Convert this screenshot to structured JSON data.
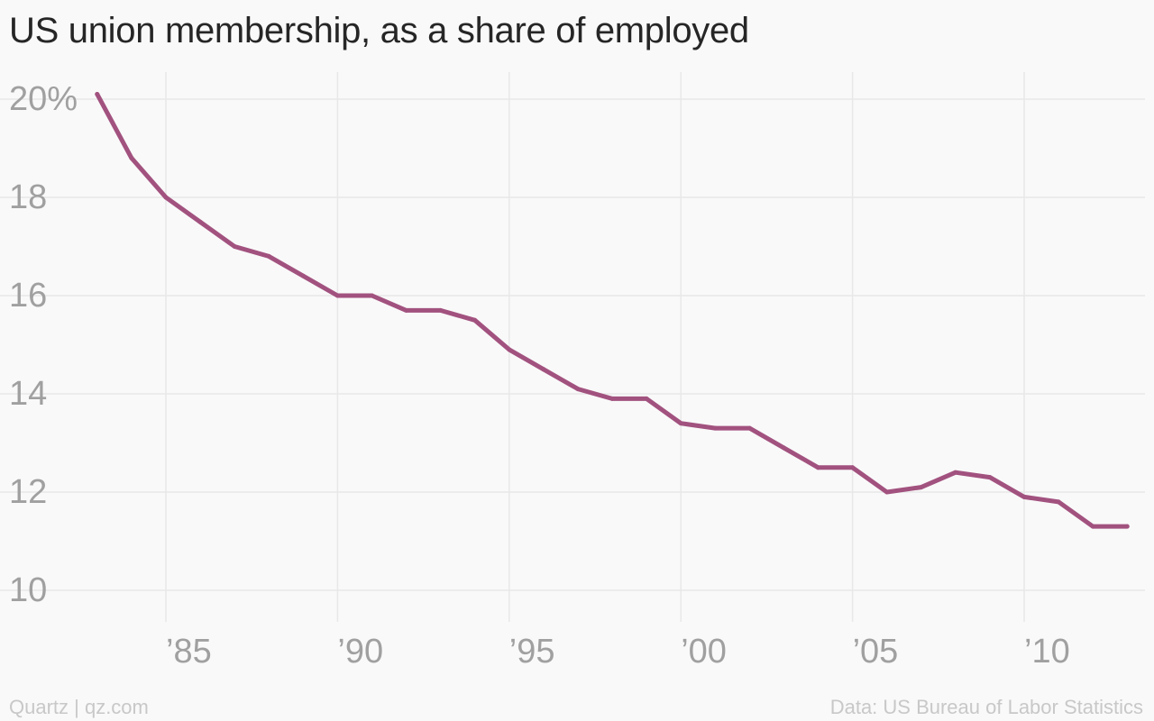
{
  "title": "US union membership, as a share of employed",
  "footer": {
    "source_credit": "Quartz | qz.com",
    "data_credit": "Data: US Bureau of Labor Statistics"
  },
  "colors": {
    "line": "#a2527f",
    "grid": "#e8e8e8",
    "tick_label": "#a0a0a0",
    "title": "#262626",
    "footer": "#c8c8c8",
    "background": "#f9f9f9"
  },
  "chart_data": {
    "type": "line",
    "title": "US union membership, as a share of employed",
    "xlabel": "",
    "ylabel": "",
    "x": [
      1983,
      1984,
      1985,
      1986,
      1987,
      1988,
      1989,
      1990,
      1991,
      1992,
      1993,
      1994,
      1995,
      1996,
      1997,
      1998,
      1999,
      2000,
      2001,
      2002,
      2003,
      2004,
      2005,
      2006,
      2007,
      2008,
      2009,
      2010,
      2011,
      2012,
      2013
    ],
    "series": [
      {
        "values": [
          20.1,
          18.8,
          18.0,
          17.5,
          17.0,
          16.8,
          16.4,
          16.0,
          16.0,
          15.7,
          15.7,
          15.5,
          14.9,
          14.5,
          14.1,
          13.9,
          13.9,
          13.4,
          13.3,
          13.3,
          12.9,
          12.5,
          12.5,
          12.0,
          12.1,
          12.4,
          12.3,
          11.9,
          11.8,
          11.3,
          11.3
        ]
      }
    ],
    "xlim": [
      1981,
      2013.5
    ],
    "ylim": [
      10,
      20
    ],
    "x_ticks": [
      1985,
      1990,
      1995,
      2000,
      2005,
      2010
    ],
    "x_tick_labels": [
      "’85",
      "’90",
      "’95",
      "’00",
      "’05",
      "’10"
    ],
    "y_ticks": [
      20,
      18,
      16,
      14,
      12,
      10
    ],
    "y_tick_labels": [
      "20%",
      "18",
      "16",
      "14",
      "12",
      "10"
    ],
    "grid": true,
    "legend": "none"
  }
}
